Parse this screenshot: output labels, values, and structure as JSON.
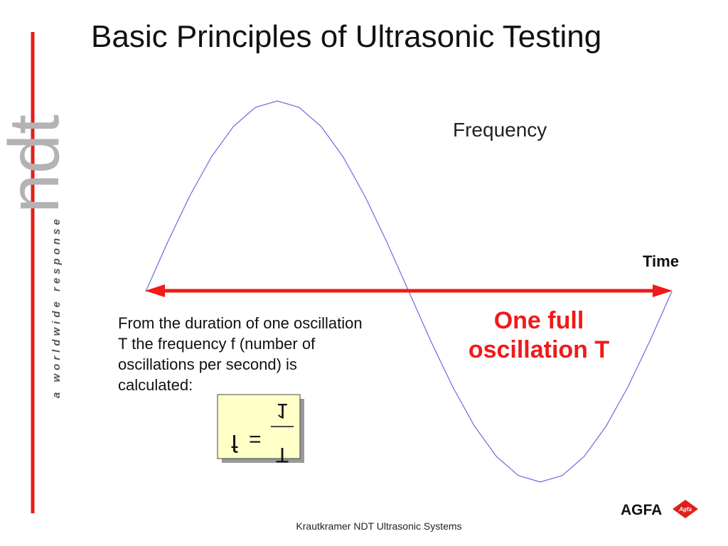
{
  "header": {
    "title": "Basic Principles of Ultrasonic Testing"
  },
  "sidebar": {
    "logo": "ndt",
    "tagline": "a worldwide response"
  },
  "diagram": {
    "frequency_label": "Frequency",
    "time_label": "Time",
    "oscillation_label": [
      "One full",
      "oscillation T"
    ]
  },
  "text": {
    "paragraph": [
      "From the duration of one oscillation",
      "T the frequency f (number of",
      "oscillations per second) is",
      "calculated:"
    ]
  },
  "formula": {
    "lhs": "f",
    "equals": "=",
    "numerator": "1",
    "denominator": "T"
  },
  "footer": {
    "text": "Krautkramer  NDT  Ultrasonic  Systems",
    "brand": "AGFA",
    "badge": "Agfa"
  }
}
